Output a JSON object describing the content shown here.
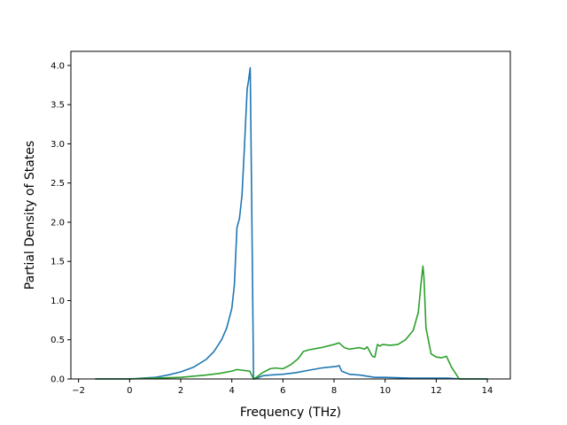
{
  "chart_data": {
    "type": "line",
    "title": "",
    "xlabel": "Frequency (THz)",
    "ylabel": "Partial Density of States",
    "xlim": [
      -2.3,
      14.9
    ],
    "ylim": [
      0.0,
      4.18
    ],
    "xticks": [
      -2,
      0,
      2,
      4,
      6,
      8,
      10,
      12,
      14
    ],
    "xtick_labels": [
      "−2",
      "0",
      "2",
      "4",
      "6",
      "8",
      "10",
      "12",
      "14"
    ],
    "yticks": [
      0.0,
      0.5,
      1.0,
      1.5,
      2.0,
      2.5,
      3.0,
      3.5,
      4.0
    ],
    "ytick_labels": [
      "0.0",
      "0.5",
      "1.0",
      "1.5",
      "2.0",
      "2.5",
      "3.0",
      "3.5",
      "4.0"
    ],
    "grid": false,
    "legend": "none",
    "series": [
      {
        "color": "#1f77b4",
        "x": [
          -1.35,
          0.0,
          0.5,
          1.0,
          1.5,
          2.0,
          2.5,
          3.0,
          3.3,
          3.6,
          3.8,
          4.0,
          4.1,
          4.2,
          4.3,
          4.4,
          4.5,
          4.6,
          4.65,
          4.72,
          4.78,
          4.85,
          4.9,
          5.2,
          5.5,
          6.0,
          6.5,
          7.0,
          7.5,
          7.8,
          8.1,
          8.2,
          8.3,
          8.6,
          9.0,
          9.4,
          9.6,
          10.0,
          11.0,
          12.0,
          12.5,
          13.0,
          14.0
        ],
        "y": [
          0.0,
          0.0,
          0.01,
          0.02,
          0.05,
          0.09,
          0.15,
          0.25,
          0.35,
          0.5,
          0.65,
          0.9,
          1.2,
          1.93,
          2.05,
          2.35,
          3.0,
          3.7,
          3.8,
          3.97,
          2.2,
          0.0,
          0.0,
          0.04,
          0.05,
          0.06,
          0.08,
          0.11,
          0.14,
          0.15,
          0.16,
          0.17,
          0.1,
          0.06,
          0.05,
          0.03,
          0.02,
          0.02,
          0.01,
          0.01,
          0.01,
          0.0,
          0.0
        ]
      },
      {
        "color": "#2ca02c",
        "x": [
          -1.35,
          0.0,
          1.0,
          2.0,
          3.0,
          3.5,
          4.0,
          4.2,
          4.7,
          4.85,
          5.0,
          5.2,
          5.5,
          5.7,
          6.0,
          6.3,
          6.6,
          6.8,
          7.0,
          7.5,
          8.0,
          8.2,
          8.4,
          8.6,
          9.0,
          9.2,
          9.3,
          9.4,
          9.5,
          9.6,
          9.7,
          9.8,
          9.9,
          10.2,
          10.5,
          10.8,
          11.1,
          11.3,
          11.4,
          11.48,
          11.52,
          11.6,
          11.8,
          12.0,
          12.2,
          12.4,
          12.6,
          12.8,
          12.9,
          13.0,
          14.0
        ],
        "y": [
          0.0,
          0.0,
          0.01,
          0.02,
          0.05,
          0.07,
          0.1,
          0.12,
          0.1,
          0.0,
          0.03,
          0.08,
          0.13,
          0.14,
          0.13,
          0.18,
          0.26,
          0.35,
          0.37,
          0.4,
          0.44,
          0.46,
          0.4,
          0.38,
          0.4,
          0.38,
          0.41,
          0.35,
          0.29,
          0.28,
          0.44,
          0.42,
          0.44,
          0.43,
          0.44,
          0.5,
          0.62,
          0.85,
          1.2,
          1.44,
          1.3,
          0.65,
          0.32,
          0.28,
          0.27,
          0.29,
          0.15,
          0.05,
          0.0,
          0.0,
          0.0
        ]
      }
    ]
  }
}
